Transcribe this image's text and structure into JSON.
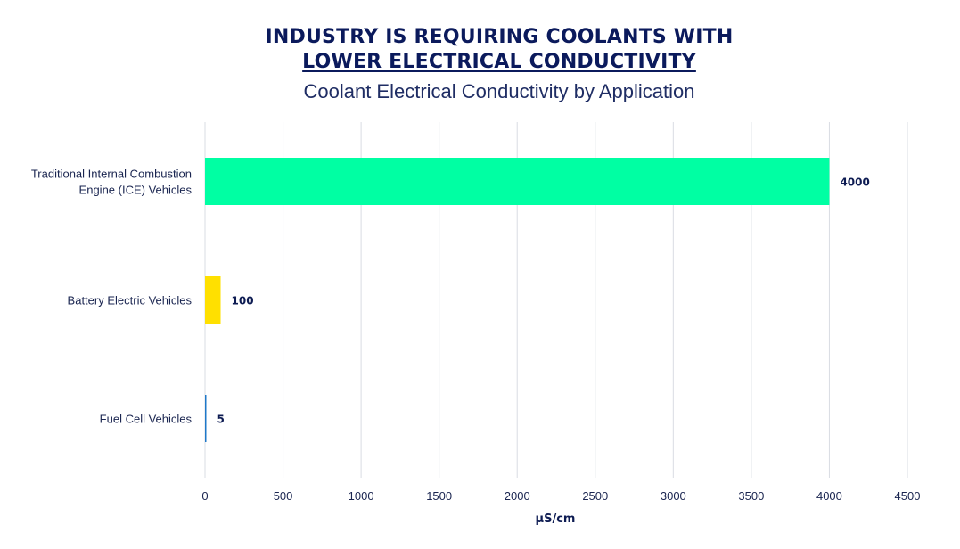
{
  "header": {
    "title_line1": "INDUSTRY IS REQUIRING COOLANTS WITH",
    "title_line2": "LOWER ELECTRICAL CONDUCTIVITY",
    "subtitle": "Coolant Electrical Conductivity by Application"
  },
  "chart_data": {
    "type": "bar",
    "orientation": "horizontal",
    "title": "INDUSTRY IS REQUIRING COOLANTS WITH LOWER ELECTRICAL CONDUCTIVITY",
    "subtitle": "Coolant Electrical Conductivity by Application",
    "xlabel": "µS/cm",
    "ylabel": "",
    "xlim": [
      0,
      4500
    ],
    "xticks": [
      0,
      500,
      1000,
      1500,
      2000,
      2500,
      3000,
      3500,
      4000,
      4500
    ],
    "grid": "vertical",
    "legend": "none",
    "categories": [
      [
        "Traditional Internal Combustion",
        "Engine (ICE) Vehicles"
      ],
      [
        "Battery Electric Vehicles"
      ],
      [
        "Fuel Cell Vehicles"
      ]
    ],
    "values": [
      4000,
      100,
      5
    ],
    "data_labels": [
      "4000",
      "100",
      "5"
    ],
    "colors": [
      "#00ffa3",
      "#ffe000",
      "#1f78c8"
    ]
  }
}
